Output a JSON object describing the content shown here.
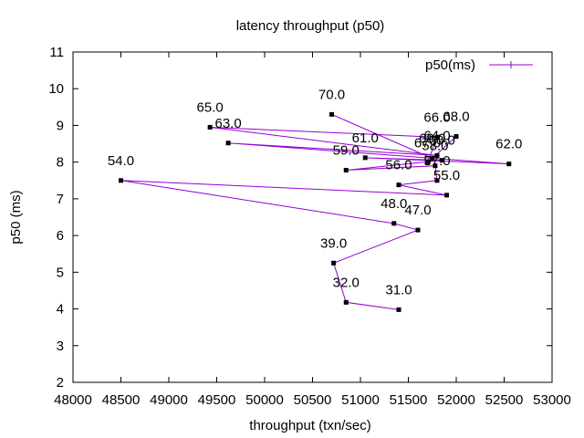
{
  "chart_data": {
    "type": "line",
    "title": "latency throughput (p50)",
    "xlabel": "throughput (txn/sec)",
    "ylabel": "p50 (ms)",
    "xlim": [
      48000,
      53000
    ],
    "ylim": [
      2,
      11
    ],
    "xticks": [
      "48000",
      "49000",
      "50000",
      "51000",
      "52000",
      "53000"
    ],
    "xtick_values": [
      48000,
      48500,
      49000,
      49500,
      50000,
      50500,
      51000,
      51500,
      52000,
      52500,
      53000
    ],
    "xtick_labels": [
      "48000",
      "48500",
      "49000",
      "49500",
      "50000",
      "50500",
      "51000",
      "51500",
      "52000",
      "52500",
      "53000"
    ],
    "yticks": [
      2,
      3,
      4,
      5,
      6,
      7,
      8,
      9,
      10,
      11
    ],
    "grid": false,
    "legend": "top-right",
    "line_color": "#9400d3",
    "point_color": "#000000",
    "series": [
      {
        "name": "p50(ms)",
        "points": [
          {
            "x": 51400,
            "y": 3.98,
            "label": "31.0"
          },
          {
            "x": 50850,
            "y": 4.18,
            "label": "32.0"
          },
          {
            "x": 50720,
            "y": 5.25,
            "label": "39.0"
          },
          {
            "x": 51600,
            "y": 6.15,
            "label": "47.0"
          },
          {
            "x": 51350,
            "y": 6.33,
            "label": "48.0"
          },
          {
            "x": 48500,
            "y": 7.5,
            "label": "54.0"
          },
          {
            "x": 51900,
            "y": 7.1,
            "label": "55.0"
          },
          {
            "x": 51400,
            "y": 7.38,
            "label": "56.0"
          },
          {
            "x": 51800,
            "y": 7.5,
            "label": "57.0"
          },
          {
            "x": 51780,
            "y": 7.9,
            "label": "58.0"
          },
          {
            "x": 50850,
            "y": 7.78,
            "label": "59.0"
          },
          {
            "x": 51850,
            "y": 8.05,
            "label": "60.0"
          },
          {
            "x": 51050,
            "y": 8.12,
            "label": "61.0"
          },
          {
            "x": 52550,
            "y": 7.95,
            "label": "62.0"
          },
          {
            "x": 49620,
            "y": 8.52,
            "label": "63.0"
          },
          {
            "x": 51800,
            "y": 8.18,
            "label": "64.0"
          },
          {
            "x": 49430,
            "y": 8.95,
            "label": "65.0"
          },
          {
            "x": 51800,
            "y": 8.68,
            "label": "66.0"
          },
          {
            "x": 51700,
            "y": 7.98,
            "label": "67.0"
          },
          {
            "x": 52000,
            "y": 8.7,
            "label": "68.0"
          },
          {
            "x": 51750,
            "y": 8.1,
            "label": "69.0"
          },
          {
            "x": 50700,
            "y": 9.3,
            "label": "70.0"
          }
        ]
      }
    ]
  }
}
